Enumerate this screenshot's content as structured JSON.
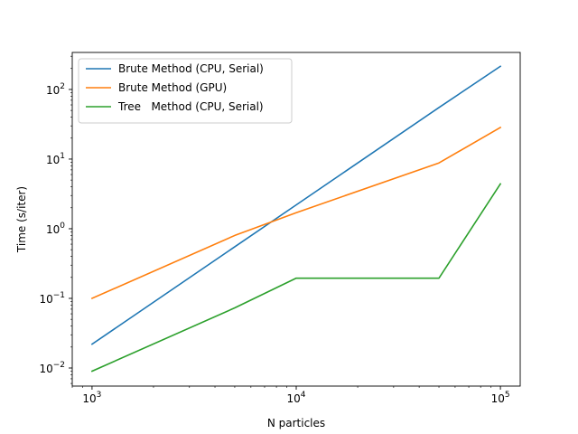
{
  "chart_data": {
    "type": "line",
    "xlabel": "N particles",
    "ylabel": "Time (s/iter)",
    "xscale": "log",
    "yscale": "log",
    "xlim": [
      800,
      125000
    ],
    "ylim": [
      0.0055,
      340
    ],
    "grid": false,
    "legend_position": "top-left",
    "x_ticks": [
      {
        "value": 1000,
        "base": "10",
        "exp": "3"
      },
      {
        "value": 10000,
        "base": "10",
        "exp": "4"
      },
      {
        "value": 100000,
        "base": "10",
        "exp": "5"
      }
    ],
    "y_ticks": [
      {
        "value": 0.01,
        "base": "10",
        "exp": "−2"
      },
      {
        "value": 0.1,
        "base": "10",
        "exp": "−1"
      },
      {
        "value": 1,
        "base": "10",
        "exp": "0"
      },
      {
        "value": 10,
        "base": "10",
        "exp": "1"
      },
      {
        "value": 100,
        "base": "10",
        "exp": "2"
      }
    ],
    "series": [
      {
        "name": "Brute Method (CPU, Serial)",
        "color": "#1f77b4",
        "x": [
          1000,
          5000,
          10000,
          50000,
          100000
        ],
        "y": [
          0.022,
          0.55,
          2.2,
          55,
          215
        ]
      },
      {
        "name": "Brute Method (GPU)",
        "color": "#ff7f0e",
        "x": [
          1000,
          5000,
          10000,
          50000,
          100000
        ],
        "y": [
          0.1,
          0.8,
          1.7,
          8.8,
          28.5
        ]
      },
      {
        "name": "Tree   Method (CPU, Serial)",
        "color": "#2ca02c",
        "x": [
          1000,
          5000,
          10000,
          50000,
          100000
        ],
        "y": [
          0.009,
          0.073,
          0.195,
          0.195,
          4.4
        ]
      }
    ]
  }
}
